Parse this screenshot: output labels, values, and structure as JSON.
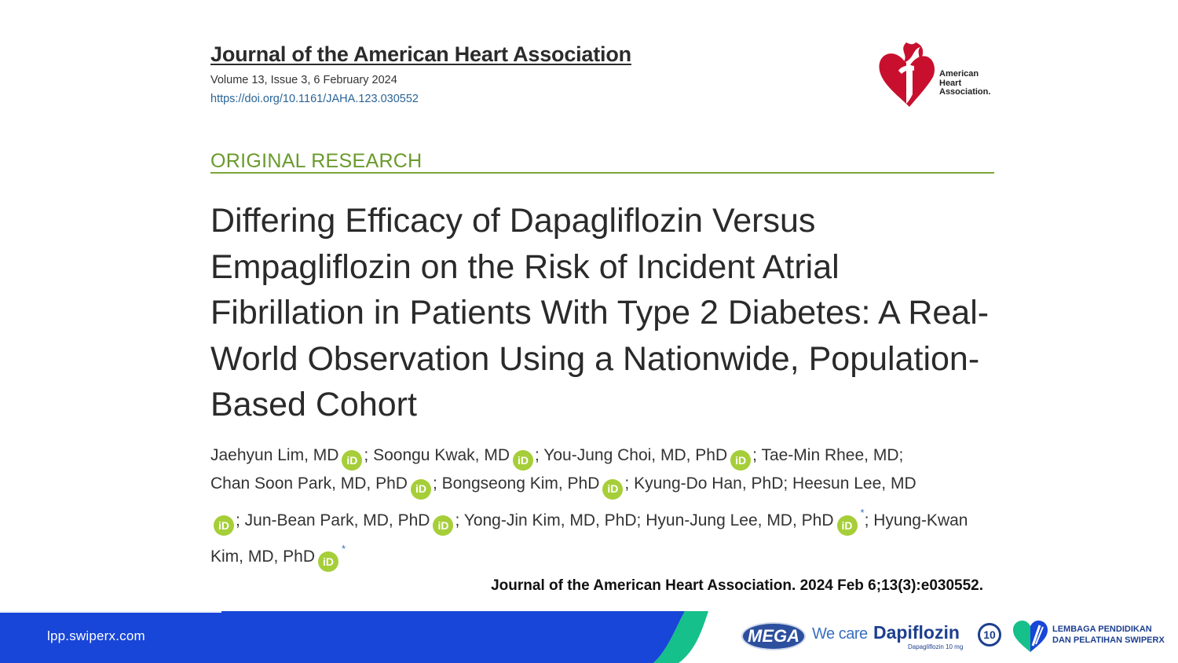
{
  "header": {
    "journal_title": "Journal of the American Heart Association",
    "volume": "Volume 13, Issue 3, 6 February 2024",
    "doi": "https://doi.org/10.1161/JAHA.123.030552"
  },
  "publisher_logo": {
    "line1": "American",
    "line2": "Heart",
    "line3": "Association."
  },
  "section": "ORIGINAL RESEARCH",
  "article_title": "Differing Efficacy of Dapagliflozin Versus Empagliflozin on the Risk of Incident Atrial Fibrillation in Patients With Type 2 Diabetes: A Real-World Observation Using a Nationwide, Population-Based Cohort",
  "orcid_label": "iD",
  "corresponding_mark": "*",
  "authors": [
    "Jaehyun Lim, MD",
    "Soongu Kwak, MD",
    "You-Jung Choi, MD, PhD",
    "Tae-Min Rhee, MD",
    "Chan Soon Park, MD, PhD",
    "Bongseong Kim, PhD",
    "Kyung-Do Han, PhD",
    "Heesun Lee, MD",
    "Jun-Bean Park, MD, PhD",
    "Yong-Jin Kim, MD, PhD",
    "Hyun-Jung Lee, MD, PhD",
    "Hyung-Kwan Kim, MD, PhD"
  ],
  "citation": "Journal of the American Heart Association. 2024 Feb 6;13(3):e030552.",
  "footer": {
    "url": "lpp.swiperx.com",
    "mega": "MEGA",
    "we_care": "We care",
    "brand": "Dapiflozin",
    "brand_sub": "Dapagliflozin 10 mg",
    "dose": "10",
    "lpp_line1": "LEMBAGA PENDIDIKAN",
    "lpp_line2": "DAN PELATIHAN SWIPERX"
  },
  "colors": {
    "section_green": "#6a9a2c",
    "orcid_green": "#a6ce39",
    "footer_blue": "#1846d8",
    "footer_teal": "#15c08a",
    "brand_navy": "#1d3f8f"
  }
}
